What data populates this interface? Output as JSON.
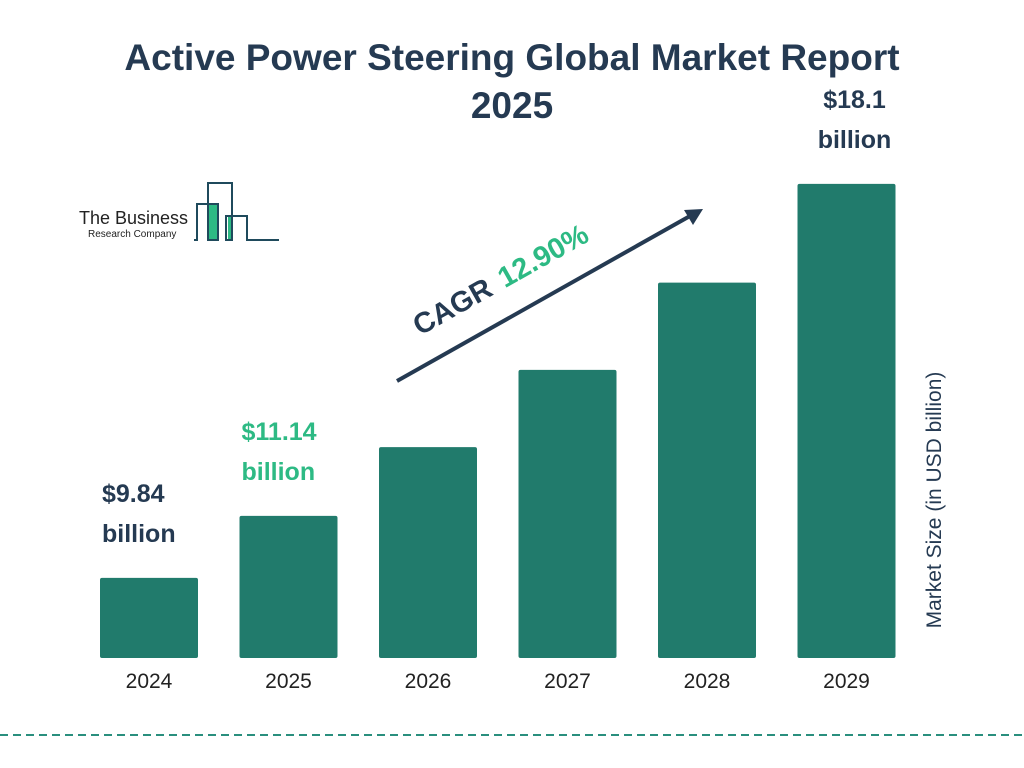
{
  "title_line1": "Active Power Steering Global Market Report",
  "title_line2": "2025",
  "logo": {
    "line1": "The Business",
    "line2": "Research Company"
  },
  "colors": {
    "bar": "#217b6c",
    "text_dark": "#253a52",
    "accent_green": "#2dba84",
    "logo_dark": "#1f4a5c"
  },
  "cagr": {
    "label": "CAGR",
    "value": "12.90%"
  },
  "chart_data": {
    "type": "bar",
    "title": "Active Power Steering Global Market Report 2025",
    "categories": [
      "2024",
      "2025",
      "2026",
      "2027",
      "2028",
      "2029"
    ],
    "values": [
      9.84,
      11.14,
      12.58,
      14.2,
      16.03,
      18.1
    ],
    "data_labels": [
      {
        "index": 0,
        "line1": "$9.84",
        "line2": "billion",
        "color": "#253a52"
      },
      {
        "index": 1,
        "line1": "$11.14",
        "line2": "billion",
        "color": "#2dba84"
      },
      {
        "index": 5,
        "line1": "$18.1",
        "line2": "billion",
        "color": "#253a52"
      }
    ],
    "ylabel": "Market Size (in USD billion)",
    "xlabel": "",
    "grid": false,
    "legend": "none"
  }
}
